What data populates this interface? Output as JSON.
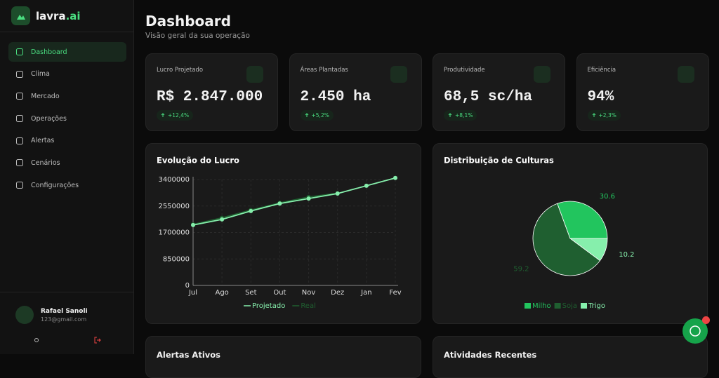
{
  "brand": {
    "name": "lavra",
    "suffix": ".ai"
  },
  "nav": [
    "Dashboard",
    "Clima",
    "Mercado",
    "Operações",
    "Alertas",
    "Cenários",
    "Configurações"
  ],
  "user": {
    "name": "Rafael Sanoli",
    "email": "123@gmail.com"
  },
  "header": {
    "title": "Dashboard",
    "subtitle": "Visão geral da sua operação"
  },
  "kpis": [
    {
      "label": "Lucro Projetado",
      "value": "R$ 2.847.000",
      "change": "+12,4%"
    },
    {
      "label": "Áreas Plantadas",
      "value": "2.450 ha",
      "change": "+5,2%"
    },
    {
      "label": "Produtividade",
      "value": "68,5 sc/ha",
      "change": "+8,1%"
    },
    {
      "label": "Eficiência",
      "value": "94%",
      "change": "+2,3%"
    }
  ],
  "chart_data": [
    {
      "type": "line",
      "title": "Evolução do Lucro",
      "categories": [
        "Jul",
        "Ago",
        "Set",
        "Out",
        "Nov",
        "Dez",
        "Jan",
        "Fev"
      ],
      "series": [
        {
          "name": "Projetado",
          "color": "#86efac",
          "values": [
            1940000,
            2120000,
            2390000,
            2630000,
            2790000,
            2950000,
            3200000,
            3450000
          ]
        },
        {
          "name": "Real",
          "color": "#1f5f30",
          "values": [
            1960000,
            2170000,
            2420000,
            2650000,
            2840000,
            2960000,
            null,
            null
          ]
        }
      ],
      "ylim": [
        0,
        3400000
      ],
      "yticks": [
        0,
        850000,
        1700000,
        2550000,
        3400000
      ],
      "grid": true
    },
    {
      "type": "pie",
      "title": "Distribuição de Culturas",
      "categories": [
        "Milho",
        "Soja",
        "Trigo"
      ],
      "values": [
        30.6,
        59.2,
        10.2
      ],
      "colors": [
        "#22c55e",
        "#1f5f30",
        "#86efac"
      ]
    }
  ],
  "sections": [
    "Alertas Ativos",
    "Atividades Recentes"
  ]
}
